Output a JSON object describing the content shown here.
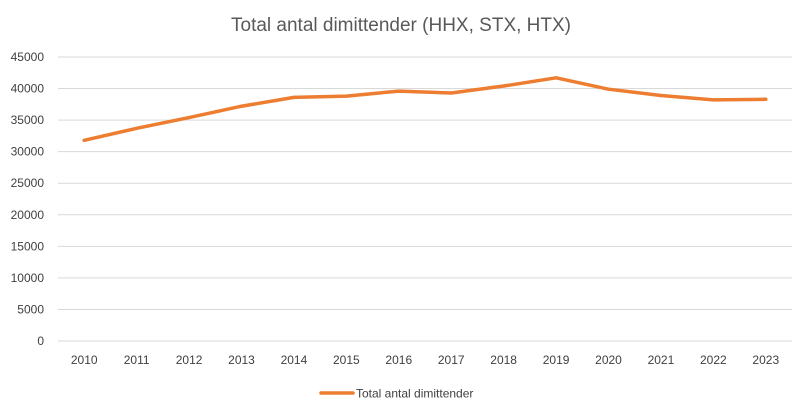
{
  "chart_data": {
    "type": "line",
    "title": "Total antal dimittender (HHX, STX, HTX)",
    "xlabel": "",
    "ylabel": "",
    "categories": [
      "2010",
      "2011",
      "2012",
      "2013",
      "2014",
      "2015",
      "2016",
      "2017",
      "2018",
      "2019",
      "2020",
      "2021",
      "2022",
      "2023"
    ],
    "series": [
      {
        "name": "Total antal dimittender",
        "color": "#ED7D31",
        "values": [
          31800,
          33700,
          35400,
          37200,
          38600,
          38800,
          39600,
          39300,
          40400,
          41700,
          39900,
          38900,
          38200,
          38300
        ]
      }
    ],
    "ylim": [
      0,
      45000
    ],
    "yticks": [
      0,
      5000,
      10000,
      15000,
      20000,
      25000,
      30000,
      35000,
      40000,
      45000
    ],
    "grid": true,
    "legend": "bottom"
  }
}
